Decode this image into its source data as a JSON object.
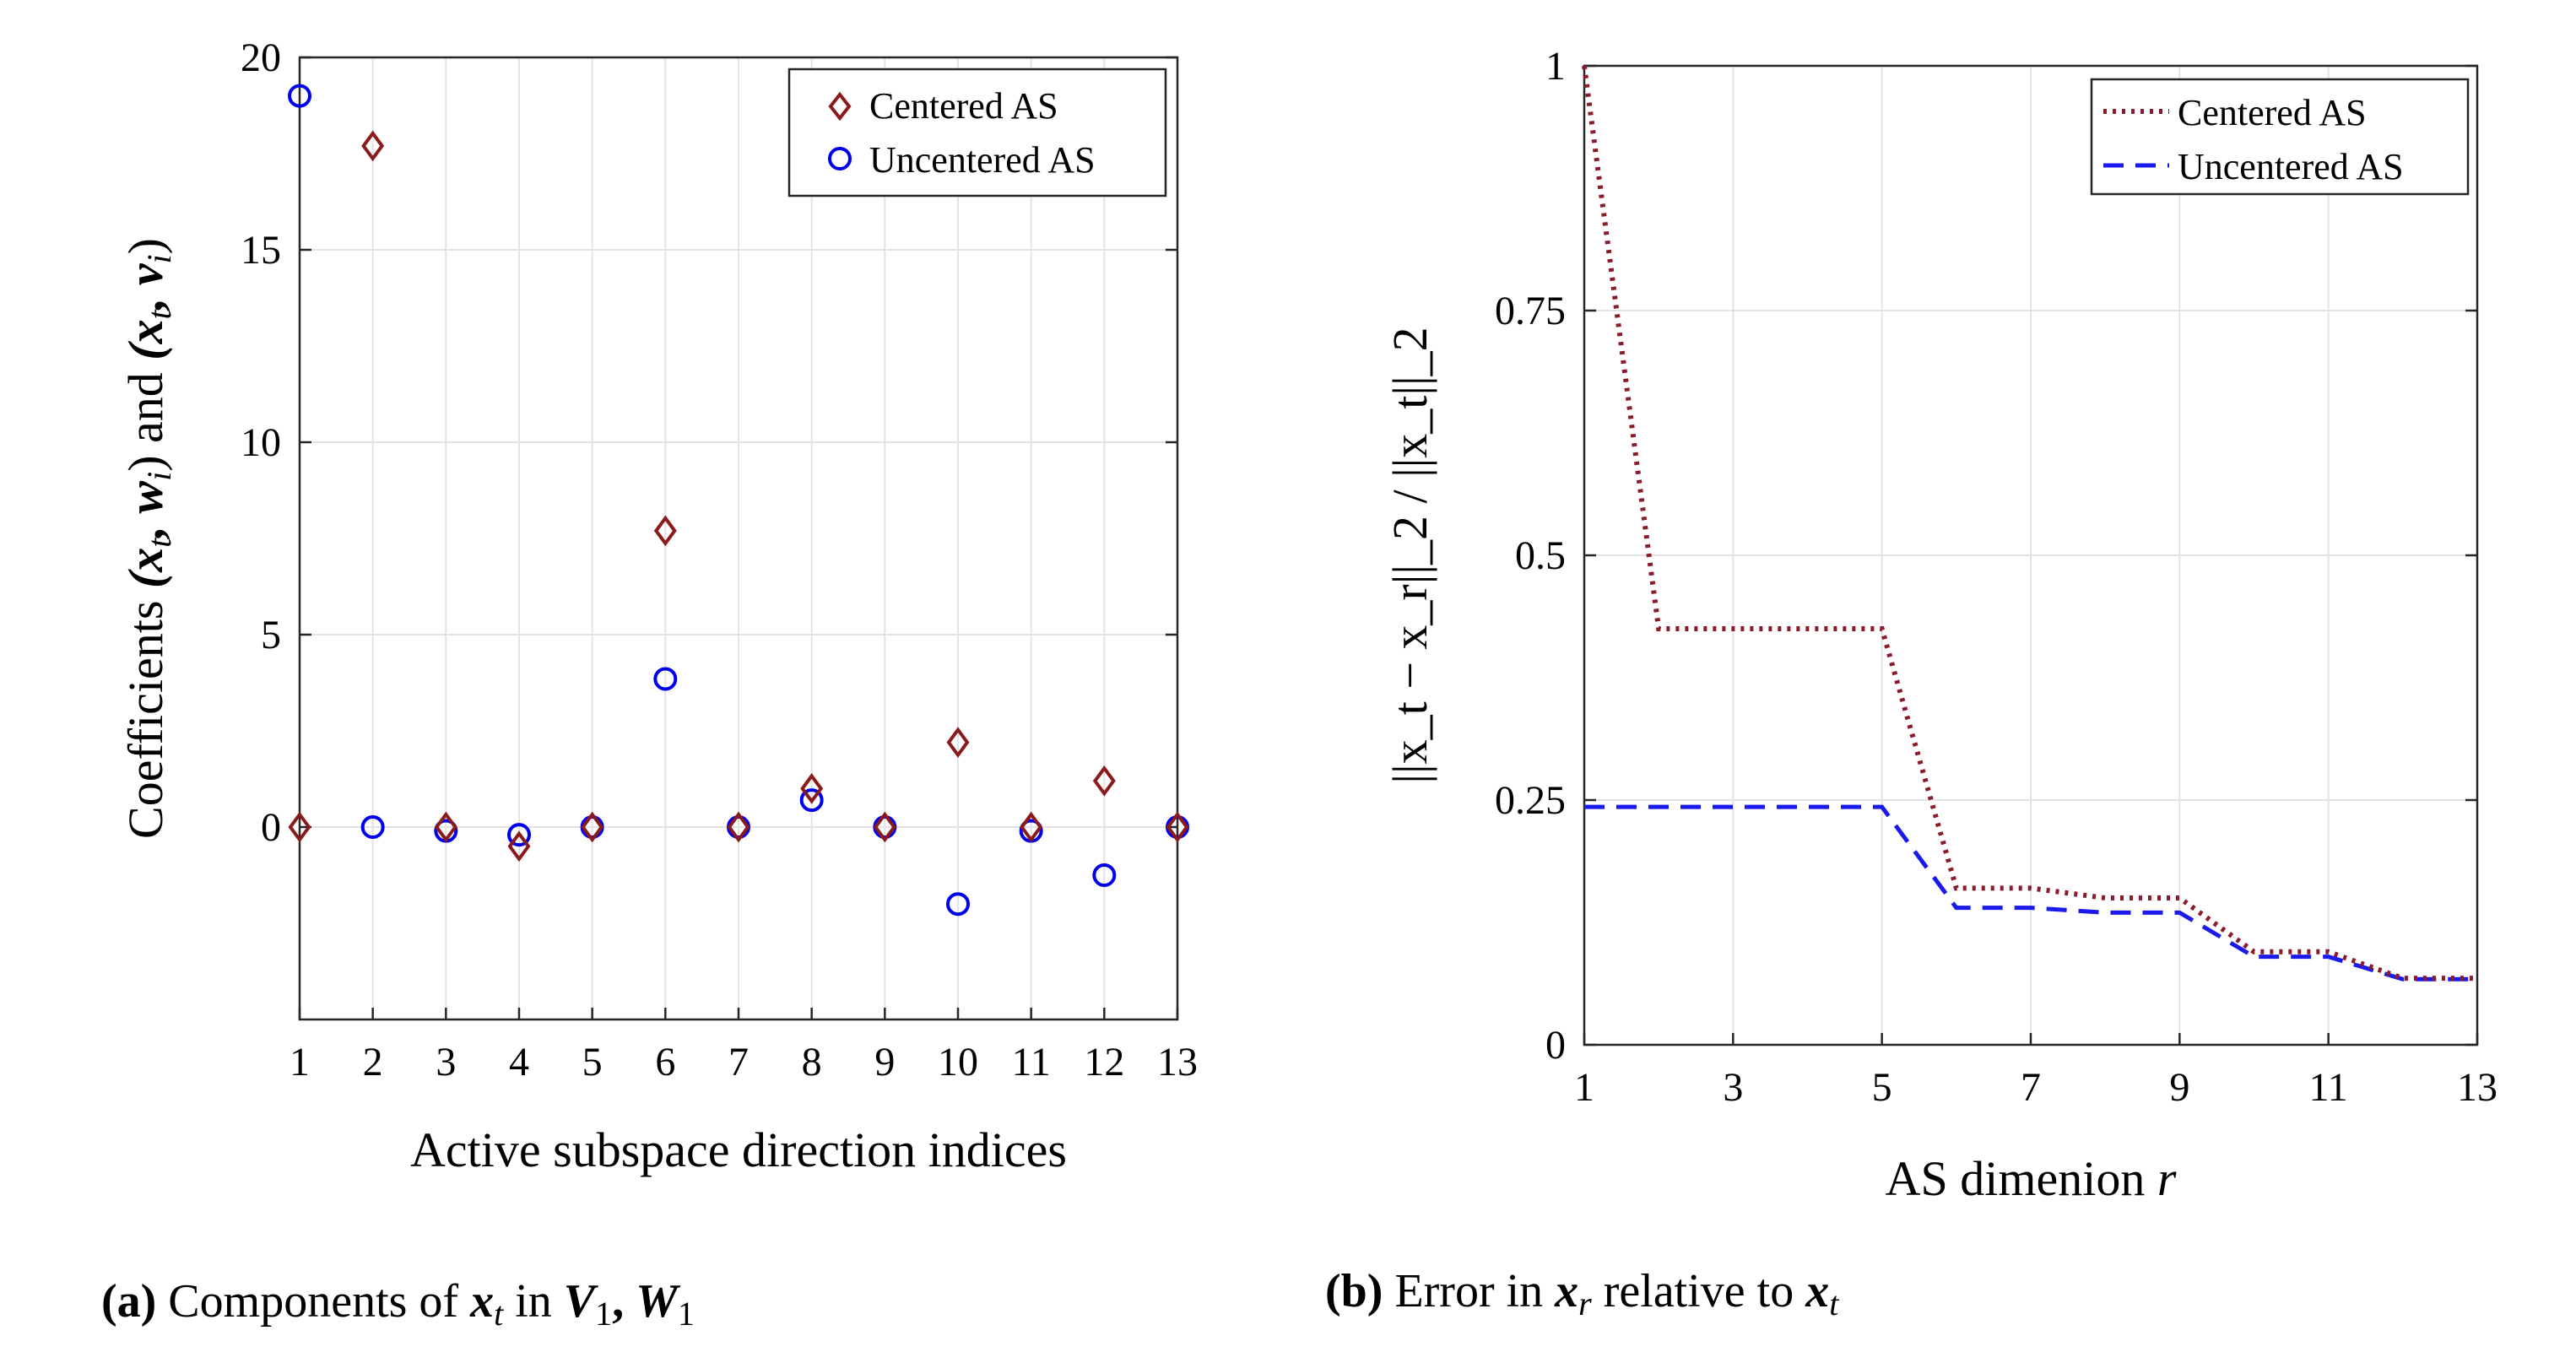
{
  "chart_data": [
    {
      "type": "scatter",
      "panel": "a",
      "xlabel": "Active subspace direction indices",
      "ylabel": "Coefficients (x_t, w_i) and (x_t, v_i)",
      "ylabel_parts": {
        "prefix": "Coefficients ",
        "p1": "(x",
        "p1sub": "t",
        "p1b": ", w",
        "p1bsub": "i",
        "mid": ") and ",
        "p2": "(x",
        "p2sub": "t",
        "p2b": ", v",
        "p2bsub": "i",
        "close": ")"
      },
      "xlim": [
        1,
        13
      ],
      "ylim": [
        -5,
        20
      ],
      "xticks": [
        1,
        2,
        3,
        4,
        5,
        6,
        7,
        8,
        9,
        10,
        11,
        12,
        13
      ],
      "yticks": [
        0,
        5,
        10,
        15,
        20
      ],
      "grid": true,
      "legend_position": "top-right",
      "series": [
        {
          "name": "Centered AS",
          "marker": "diamond",
          "color": "#8b1a1a",
          "x": [
            1,
            2,
            3,
            4,
            5,
            6,
            7,
            8,
            9,
            10,
            11,
            12,
            13
          ],
          "y": [
            0,
            17.7,
            0,
            -0.5,
            0,
            7.7,
            0,
            1.0,
            0,
            2.2,
            0,
            1.2,
            0
          ]
        },
        {
          "name": "Uncentered AS",
          "marker": "circle",
          "color": "#0000ee",
          "x": [
            1,
            2,
            3,
            4,
            5,
            6,
            7,
            8,
            9,
            10,
            11,
            12,
            13
          ],
          "y": [
            19.0,
            0,
            -0.1,
            -0.2,
            0,
            3.85,
            0,
            0.7,
            0,
            -2.0,
            -0.1,
            -1.25,
            0
          ]
        }
      ]
    },
    {
      "type": "line",
      "panel": "b",
      "xlabel": "AS dimenion r",
      "xlabel_parts": {
        "text": "AS dimenion ",
        "var": "r"
      },
      "ylabel": "||x_t − x_r||_2 / ||x_t||_2",
      "xlim": [
        1,
        13
      ],
      "ylim": [
        0,
        1
      ],
      "xticks": [
        1,
        3,
        5,
        7,
        9,
        11,
        13
      ],
      "yticks": [
        0,
        0.25,
        0.5,
        0.75,
        1
      ],
      "ytick_labels": [
        "0",
        "0.25",
        "0.5",
        "0.75",
        "1"
      ],
      "grid": true,
      "legend_position": "top-right",
      "series": [
        {
          "name": "Centered AS",
          "style": "dotted",
          "color": "#8b1a2a",
          "x": [
            1,
            2,
            3,
            4,
            5,
            6,
            7,
            8,
            9,
            10,
            11,
            12,
            13
          ],
          "y": [
            1.0,
            0.425,
            0.425,
            0.425,
            0.425,
            0.16,
            0.16,
            0.15,
            0.15,
            0.095,
            0.095,
            0.068,
            0.068
          ]
        },
        {
          "name": "Uncentered AS",
          "style": "dashed",
          "color": "#1a1aee",
          "x": [
            1,
            2,
            3,
            4,
            5,
            6,
            7,
            8,
            9,
            10,
            11,
            12,
            13
          ],
          "y": [
            0.243,
            0.243,
            0.243,
            0.243,
            0.243,
            0.14,
            0.14,
            0.135,
            0.135,
            0.09,
            0.09,
            0.067,
            0.067
          ]
        }
      ]
    }
  ],
  "captions": {
    "a": {
      "label": "(a)",
      "text": " Components of ",
      "v1": "x",
      "v1sub": "t",
      "mid": " in ",
      "v2": "V",
      "v2sub": "1",
      "sep": ", ",
      "v3": "W",
      "v3sub": "1"
    },
    "b": {
      "label": "(b)",
      "text": " Error in ",
      "v1": "x",
      "v1sub": "r",
      "mid": " relative to ",
      "v2": "x",
      "v2sub": "t"
    }
  }
}
